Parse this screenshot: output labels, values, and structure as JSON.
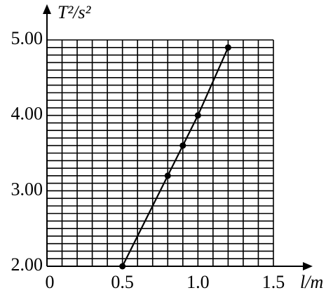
{
  "chart_data": {
    "type": "scatter",
    "y_label": "T²/s²",
    "x_label": "l/m",
    "x": [
      0.5,
      0.8,
      0.9,
      1.0,
      1.2
    ],
    "values": [
      2.0,
      3.2,
      3.6,
      4.0,
      4.9
    ],
    "color": "#000000",
    "fit_line": true,
    "xlim": [
      0,
      1.5
    ],
    "ylim": [
      2,
      5
    ],
    "xticks": [
      0,
      0.5,
      {
        "value": 1,
        "label": "1.0"
      },
      1.5
    ],
    "yticks": [
      {
        "value": 2,
        "label": "2.00"
      },
      {
        "value": 3,
        "label": "3.00"
      },
      {
        "value": 4,
        "label": "4.00"
      },
      {
        "value": 5,
        "label": "5.00"
      }
    ],
    "xgrid": [
      0,
      0.1,
      0.2,
      0.3,
      0.4,
      0.5,
      0.6,
      0.7,
      0.8,
      0.9,
      1.0,
      1.1,
      1.2,
      1.3,
      1.4,
      1.5
    ],
    "ygrid": [
      2.0,
      2.1,
      2.2,
      2.3,
      2.4,
      2.5,
      2.6,
      2.7,
      2.8,
      2.9,
      3.0,
      3.1,
      3.2,
      3.3,
      3.4,
      3.5,
      3.6,
      3.7,
      3.8,
      3.9,
      4.0,
      4.1,
      4.2,
      4.3,
      4.4,
      4.5,
      4.6,
      4.7,
      4.8,
      4.9,
      5.0
    ]
  }
}
